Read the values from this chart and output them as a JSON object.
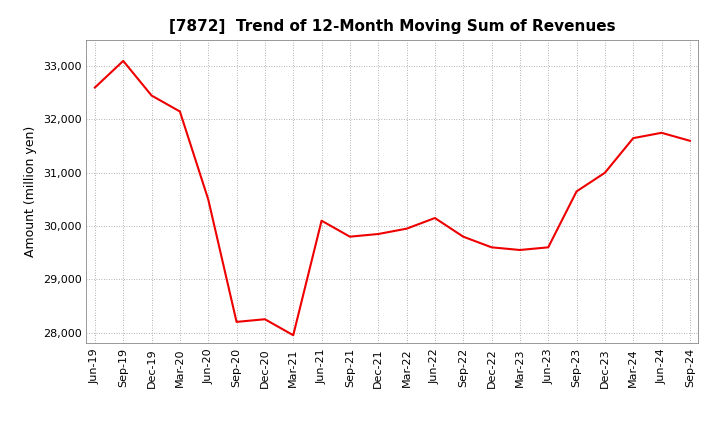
{
  "title": "[7872]  Trend of 12-Month Moving Sum of Revenues",
  "ylabel": "Amount (million yen)",
  "background_color": "#ffffff",
  "line_color": "#ee0000",
  "grid_color": "#999999",
  "labels": [
    "Jun-19",
    "Sep-19",
    "Dec-19",
    "Mar-20",
    "Jun-20",
    "Sep-20",
    "Dec-20",
    "Mar-21",
    "Jun-21",
    "Sep-21",
    "Dec-21",
    "Mar-22",
    "Jun-22",
    "Sep-22",
    "Dec-22",
    "Mar-23",
    "Jun-23",
    "Sep-23",
    "Dec-23",
    "Mar-24",
    "Jun-24",
    "Sep-24"
  ],
  "values": [
    32600,
    33100,
    32450,
    32150,
    30500,
    28200,
    28250,
    27950,
    30100,
    29800,
    29850,
    29950,
    30150,
    29800,
    29600,
    29550,
    29600,
    30650,
    31000,
    31650,
    31750,
    31600
  ],
  "ylim": [
    27800,
    33500
  ],
  "yticks": [
    28000,
    29000,
    30000,
    31000,
    32000,
    33000
  ],
  "title_fontsize": 11,
  "tick_fontsize": 8,
  "ylabel_fontsize": 9,
  "linewidth": 1.5
}
